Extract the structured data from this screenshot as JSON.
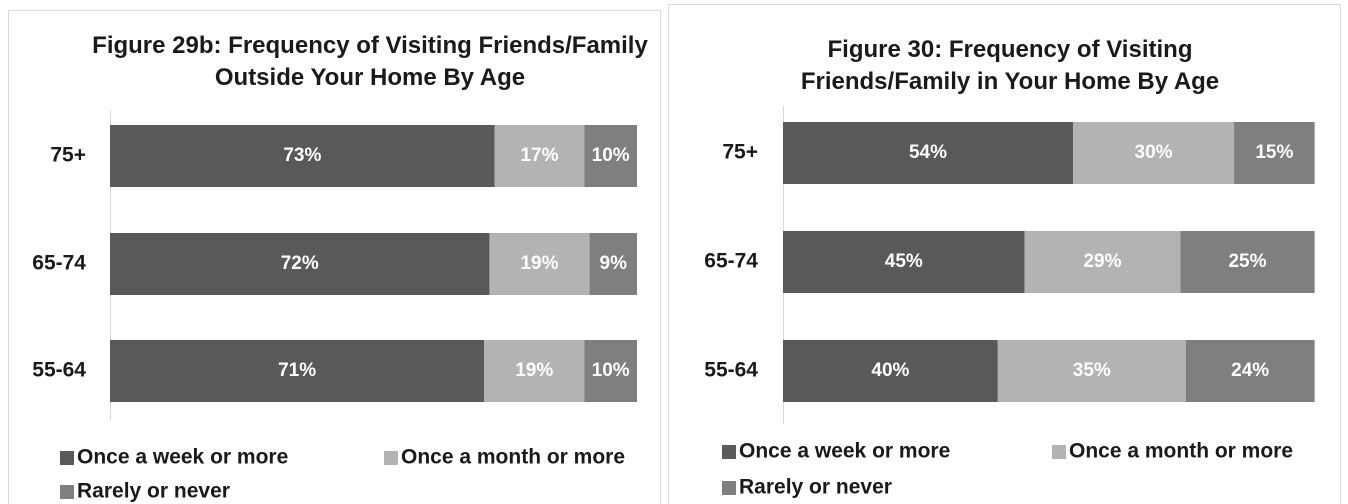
{
  "chart_data": [
    {
      "type": "stacked_bar_horizontal",
      "title": "Figure 29b: Frequency of Visiting Friends/Family Outside Your Home By Age",
      "categories": [
        "75+",
        "65-74",
        "55-64"
      ],
      "xlim": [
        0,
        100
      ],
      "legend": "bottom",
      "series": [
        {
          "name": "Once a week or more",
          "color": "#595959",
          "values": [
            73,
            72,
            71
          ],
          "value_labels": [
            "73%",
            "72%",
            "71%"
          ]
        },
        {
          "name": "Once a month or more",
          "color": "#b3b3b3",
          "values": [
            17,
            19,
            19
          ],
          "value_labels": [
            "17%",
            "19%",
            "19%"
          ]
        },
        {
          "name": "Rarely or never",
          "color": "#7f7f7f",
          "values": [
            10,
            9,
            10
          ],
          "value_labels": [
            "10%",
            "9%",
            "10%"
          ]
        }
      ]
    },
    {
      "type": "stacked_bar_horizontal",
      "title": "Figure 30: Frequency of Visiting Friends/Family in Your Home By Age",
      "categories": [
        "75+",
        "65-74",
        "55-64"
      ],
      "xlim": [
        0,
        100
      ],
      "legend": "bottom",
      "series": [
        {
          "name": "Once a week or more",
          "color": "#595959",
          "values": [
            54,
            45,
            40
          ],
          "value_labels": [
            "54%",
            "45%",
            "40%"
          ]
        },
        {
          "name": "Once a month or more",
          "color": "#b3b3b3",
          "values": [
            30,
            29,
            35
          ],
          "value_labels": [
            "30%",
            "29%",
            "35%"
          ]
        },
        {
          "name": "Rarely or never",
          "color": "#7f7f7f",
          "values": [
            15,
            25,
            24
          ],
          "value_labels": [
            "15%",
            "25%",
            "24%"
          ]
        }
      ]
    }
  ]
}
